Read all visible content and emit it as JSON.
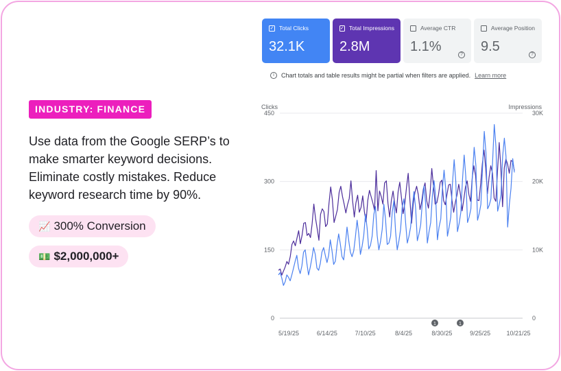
{
  "industry_badge": "INDUSTRY: FINANCE",
  "description": "Use data from the Google SERP’s to make smarter keyword decisions. Eliminate costly mistakes. Reduce keyword research time by 90%.",
  "highlights": [
    {
      "icon": "chart-increasing-icon",
      "glyph": "📈",
      "text": "300% Conversion"
    },
    {
      "icon": "money-icon",
      "glyph": "💵",
      "text": "$2,000,000+"
    }
  ],
  "metrics": [
    {
      "label": "Total Clicks",
      "value": "32.1K",
      "checked": true,
      "color": "#4285f4"
    },
    {
      "label": "Total Impressions",
      "value": "2.8M",
      "checked": true,
      "color": "#5e35b1"
    },
    {
      "label": "Average CTR",
      "value": "1.1%",
      "checked": false,
      "color": "#f1f3f4"
    },
    {
      "label": "Average Position",
      "value": "9.5",
      "checked": false,
      "color": "#f1f3f4"
    }
  ],
  "notice": {
    "text": "Chart totals and table results might be partial when filters are applied.",
    "link": "Learn more"
  },
  "chart_data": {
    "type": "line",
    "left_axis_label": "Clicks",
    "right_axis_label": "Impressions",
    "left_ticks": [
      "450",
      "300",
      "150",
      "0"
    ],
    "left_ylim": [
      0,
      450
    ],
    "right_ticks": [
      "30K",
      "20K",
      "10K",
      "0"
    ],
    "right_ylim": [
      0,
      30000
    ],
    "x_tick_labels": [
      "5/19/25",
      "6/14/25",
      "7/10/25",
      "8/4/25",
      "8/30/25",
      "9/25/25",
      "10/21/25"
    ],
    "annotations": [
      "1",
      "1"
    ],
    "grid": true,
    "series": [
      {
        "name": "Total Impressions",
        "axis": "right",
        "color": "#4b2c9a",
        "values": [
          7000,
          7200,
          6300,
          6900,
          7500,
          8300,
          7900,
          9000,
          10800,
          11300,
          10600,
          11700,
          12800,
          10900,
          12100,
          13900,
          14000,
          12100,
          12400,
          11800,
          13800,
          16700,
          14600,
          13100,
          11400,
          15200,
          16000,
          15600,
          13400,
          13800,
          16800,
          19200,
          17400,
          14000,
          14900,
          15900,
          18400,
          19300,
          17800,
          16700,
          15400,
          16600,
          17500,
          20100,
          17200,
          14800,
          16900,
          18000,
          15500,
          16200,
          17900,
          15600,
          14100,
          17200,
          18700,
          17800,
          16900,
          15800,
          21600,
          15700,
          18600,
          17800,
          16700,
          19800,
          20100,
          16800,
          14800,
          17200,
          18600,
          16800,
          15400,
          18500,
          19900,
          17600,
          15300,
          16800,
          19100,
          21200,
          17300,
          13900,
          16800,
          18400,
          19300,
          18100,
          15900,
          17100,
          18900,
          19800,
          17200,
          16100,
          18300,
          21900,
          19200,
          16700,
          16900,
          18100,
          19900,
          20200,
          17200,
          16600,
          18100,
          19500,
          19600,
          17200,
          15500,
          17000,
          18100,
          19600,
          18100,
          15700,
          17400,
          19200,
          20100,
          18100,
          17100,
          20600,
          22300,
          20800,
          17300,
          17200,
          19700,
          22600,
          24600,
          22000,
          18200,
          20600,
          22300,
          21200,
          17600,
          17100,
          21500,
          25700,
          22000,
          16300,
          22000,
          23300,
          22500,
          21200,
          23100,
          22900,
          21600
        ]
      },
      {
        "name": "Total Clicks",
        "axis": "left",
        "color": "#4a80f0",
        "values": [
          95,
          100,
          88,
          72,
          80,
          95,
          90,
          82,
          95,
          110,
          125,
          138,
          110,
          98,
          115,
          145,
          150,
          120,
          95,
          112,
          132,
          155,
          140,
          110,
          105,
          120,
          145,
          155,
          138,
          122,
          138,
          172,
          148,
          118,
          125,
          160,
          185,
          162,
          135,
          128,
          162,
          200,
          170,
          145,
          135,
          148,
          178,
          215,
          185,
          140,
          158,
          182,
          228,
          198,
          152,
          160,
          180,
          228,
          245,
          182,
          150,
          168,
          195,
          250,
          218,
          162,
          165,
          180,
          232,
          258,
          190,
          150,
          170,
          195,
          245,
          262,
          210,
          165,
          180,
          200,
          245,
          278,
          240,
          170,
          185,
          205,
          255,
          290,
          250,
          165,
          190,
          210,
          270,
          302,
          265,
          172,
          200,
          218,
          285,
          325,
          282,
          180,
          200,
          222,
          295,
          348,
          300,
          190,
          208,
          232,
          305,
          358,
          310,
          210,
          222,
          240,
          318,
          375,
          335,
          215,
          230,
          250,
          330,
          410,
          365,
          240,
          248,
          262,
          345,
          425,
          375,
          235,
          250,
          270,
          355,
          395,
          355,
          200,
          250,
          285,
          350,
          320
        ]
      }
    ]
  }
}
